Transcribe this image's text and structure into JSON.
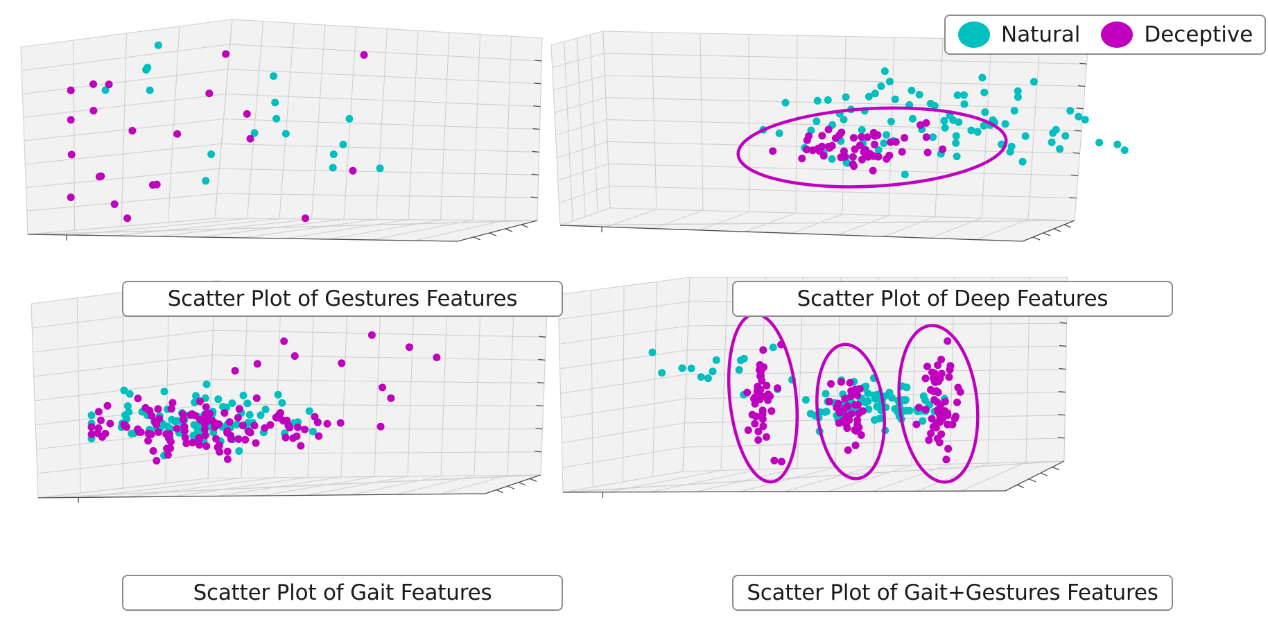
{
  "legend": {
    "natural_label": "Natural",
    "deceptive_label": "Deceptive",
    "natural_color": "#00BFBF",
    "deceptive_color": "#BF00BF"
  },
  "chart_data": [
    {
      "type": "scatter",
      "title": "Scatter Plot of Gestures Features",
      "projection": "3d",
      "grid": true,
      "series": [
        {
          "name": "Natural",
          "seed": 11,
          "clusters": [
            {
              "n": 18,
              "cx": 0.4,
              "cy": 0.45,
              "sx": 0.22,
              "sy": 0.25
            }
          ]
        },
        {
          "name": "Deceptive",
          "seed": 23,
          "clusters": [
            {
              "n": 22,
              "cx": 0.35,
              "cy": 0.5,
              "sx": 0.25,
              "sy": 0.25
            }
          ]
        }
      ],
      "outlines": []
    },
    {
      "type": "scatter",
      "title": "Scatter Plot of Deep Features",
      "projection": "3d",
      "grid": true,
      "series": [
        {
          "name": "Natural",
          "seed": 37,
          "clusters": [
            {
              "n": 70,
              "cx": 0.45,
              "cy": 0.45,
              "sx": 0.14,
              "sy": 0.14
            },
            {
              "n": 14,
              "cx": 0.75,
              "cy": 0.55,
              "sx": 0.12,
              "sy": 0.1
            }
          ]
        },
        {
          "name": "Deceptive",
          "seed": 41,
          "clusters": [
            {
              "n": 55,
              "cx": 0.35,
              "cy": 0.62,
              "sx": 0.09,
              "sy": 0.06
            }
          ]
        }
      ],
      "outlines": [
        "Deceptive"
      ]
    },
    {
      "type": "scatter",
      "title": "Scatter Plot of Gait Features",
      "projection": "3d",
      "grid": true,
      "series": [
        {
          "name": "Natural",
          "seed": 53,
          "clusters": [
            {
              "n": 100,
              "cx": 0.28,
              "cy": 0.62,
              "sx": 0.14,
              "sy": 0.08
            }
          ]
        },
        {
          "name": "Deceptive",
          "seed": 67,
          "clusters": [
            {
              "n": 110,
              "cx": 0.28,
              "cy": 0.64,
              "sx": 0.14,
              "sy": 0.08
            },
            {
              "n": 12,
              "cx": 0.55,
              "cy": 0.4,
              "sx": 0.14,
              "sy": 0.18
            }
          ]
        }
      ],
      "outlines": []
    },
    {
      "type": "scatter",
      "title": "Scatter Plot of Gait+Gestures Features",
      "projection": "3d",
      "grid": true,
      "series": [
        {
          "name": "Natural",
          "seed": 71,
          "clusters": [
            {
              "n": 90,
              "cx": 0.6,
              "cy": 0.58,
              "sx": 0.1,
              "sy": 0.06
            },
            {
              "n": 14,
              "cx": 0.18,
              "cy": 0.4,
              "sx": 0.1,
              "sy": 0.1
            }
          ]
        },
        {
          "name": "Deceptive",
          "seed": 83,
          "clusters": [
            {
              "n": 40,
              "cx": 0.31,
              "cy": 0.55,
              "sx": 0.02,
              "sy": 0.13
            },
            {
              "n": 35,
              "cx": 0.54,
              "cy": 0.62,
              "sx": 0.02,
              "sy": 0.1
            },
            {
              "n": 60,
              "cx": 0.77,
              "cy": 0.58,
              "sx": 0.025,
              "sy": 0.12
            }
          ]
        }
      ],
      "outlines": [
        "Deceptive"
      ]
    }
  ]
}
